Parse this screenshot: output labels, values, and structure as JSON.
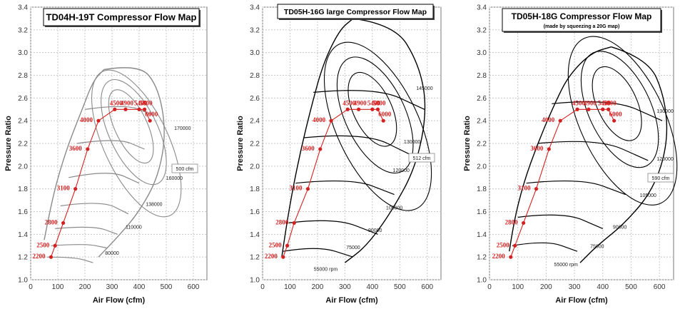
{
  "chart_data": [
    {
      "type": "line",
      "title": "TD04H-19T Compressor Flow Map",
      "subtitle": "",
      "xlabel": "Air Flow (cfm)",
      "ylabel": "Pressure Ratio",
      "xlim": [
        0,
        650
      ],
      "ylim": [
        1.0,
        3.4
      ],
      "xticks": [
        0,
        100,
        200,
        300,
        400,
        500,
        600
      ],
      "yticks": [
        1.0,
        1.2,
        1.4,
        1.6,
        1.8,
        2.0,
        2.2,
        2.4,
        2.6,
        2.8,
        3.0,
        3.2,
        3.4
      ],
      "grid": true,
      "map_color": "#8a8a8a",
      "series": [
        {
          "values": [
            [
              75,
              1.2
            ],
            [
              90,
              1.3
            ],
            [
              120,
              1.5
            ],
            [
              165,
              1.8
            ],
            [
              210,
              2.15
            ],
            [
              250,
              2.4
            ],
            [
              310,
              2.5
            ],
            [
              350,
              2.5
            ],
            [
              400,
              2.5
            ],
            [
              420,
              2.5
            ],
            [
              440,
              2.4
            ]
          ],
          "point_labels": [
            "2200",
            "2500",
            "2800",
            "3100",
            "3600",
            "4000",
            "4500",
            "4900",
            "5400",
            "5800",
            "6000"
          ]
        }
      ],
      "surge_line": [
        [
          50,
          1.35
        ],
        [
          70,
          1.6
        ],
        [
          100,
          1.9
        ],
        [
          140,
          2.2
        ],
        [
          190,
          2.5
        ],
        [
          230,
          2.75
        ],
        [
          270,
          2.85
        ]
      ],
      "speed_lines": [
        [
          [
            60,
            1.2
          ],
          [
            160,
            1.2
          ],
          [
            230,
            1.15
          ]
        ],
        [
          [
            75,
            1.3
          ],
          [
            200,
            1.32
          ],
          [
            280,
            1.28
          ]
        ],
        [
          [
            90,
            1.45
          ],
          [
            230,
            1.48
          ],
          [
            320,
            1.4
          ]
        ],
        [
          [
            110,
            1.65
          ],
          [
            260,
            1.7
          ],
          [
            360,
            1.58
          ]
        ],
        [
          [
            140,
            1.9
          ],
          [
            290,
            1.97
          ],
          [
            400,
            1.85
          ]
        ],
        [
          [
            170,
            2.2
          ],
          [
            320,
            2.25
          ],
          [
            420,
            2.15
          ]
        ],
        [
          [
            200,
            2.5
          ],
          [
            350,
            2.55
          ],
          [
            450,
            2.45
          ]
        ]
      ],
      "choke_line": [
        [
          270,
          2.85
        ],
        [
          400,
          2.9
        ],
        [
          470,
          2.7
        ],
        [
          500,
          2.3
        ],
        [
          470,
          1.9
        ],
        [
          400,
          1.6
        ],
        [
          330,
          1.4
        ],
        [
          250,
          1.2
        ]
      ],
      "efficiency_islands": [
        {
          "cx": 370,
          "cy": 2.35,
          "rx": 60,
          "ry": 0.35
        },
        {
          "cx": 380,
          "cy": 2.3,
          "rx": 90,
          "ry": 0.5
        },
        {
          "cx": 390,
          "cy": 2.2,
          "rx": 120,
          "ry": 0.7
        }
      ],
      "speed_labels": [
        {
          "text": "170000",
          "x": 560,
          "y": 2.32
        },
        {
          "text": "160000",
          "x": 530,
          "y": 1.88
        },
        {
          "text": "138000",
          "x": 455,
          "y": 1.65
        },
        {
          "text": "110000",
          "x": 380,
          "y": 1.45
        },
        {
          "text": "80000",
          "x": 300,
          "y": 1.22
        }
      ],
      "callout": "500 cfm"
    },
    {
      "type": "line",
      "title": "TD05H-16G large Compressor Flow Map",
      "subtitle": "",
      "xlabel": "Air Flow (cfm)",
      "ylabel": "Pressure Ratio",
      "xlim": [
        0,
        650
      ],
      "ylim": [
        1.0,
        3.4
      ],
      "xticks": [
        0,
        100,
        200,
        300,
        400,
        500,
        600
      ],
      "yticks": [
        1.0,
        1.2,
        1.4,
        1.6,
        1.8,
        2.0,
        2.2,
        2.4,
        2.6,
        2.8,
        3.0,
        3.2,
        3.4
      ],
      "grid": true,
      "map_color": "#000000",
      "series": [
        {
          "values": [
            [
              75,
              1.2
            ],
            [
              90,
              1.3
            ],
            [
              115,
              1.5
            ],
            [
              165,
              1.8
            ],
            [
              210,
              2.15
            ],
            [
              250,
              2.4
            ],
            [
              310,
              2.5
            ],
            [
              350,
              2.5
            ],
            [
              400,
              2.5
            ],
            [
              420,
              2.5
            ],
            [
              440,
              2.4
            ]
          ],
          "point_labels": [
            "2200",
            "2500",
            "2800",
            "3100",
            "3600",
            "4000",
            "4500",
            "4900",
            "5400",
            "5800",
            "6000"
          ]
        }
      ],
      "surge_line": [
        [
          70,
          1.2
        ],
        [
          85,
          1.45
        ],
        [
          110,
          1.8
        ],
        [
          140,
          2.15
        ],
        [
          175,
          2.5
        ],
        [
          220,
          2.9
        ],
        [
          280,
          3.2
        ],
        [
          330,
          3.3
        ]
      ],
      "speed_lines": [
        [
          [
            75,
            1.25
          ],
          [
            200,
            1.3
          ],
          [
            330,
            1.2
          ]
        ],
        [
          [
            95,
            1.5
          ],
          [
            260,
            1.55
          ],
          [
            420,
            1.4
          ]
        ],
        [
          [
            120,
            1.85
          ],
          [
            320,
            1.9
          ],
          [
            480,
            1.75
          ]
        ],
        [
          [
            150,
            2.25
          ],
          [
            370,
            2.3
          ],
          [
            540,
            2.1
          ]
        ],
        [
          [
            185,
            2.65
          ],
          [
            410,
            2.7
          ],
          [
            590,
            2.5
          ]
        ]
      ],
      "choke_line": [
        [
          330,
          3.3
        ],
        [
          480,
          3.25
        ],
        [
          570,
          2.9
        ],
        [
          600,
          2.5
        ],
        [
          560,
          2.0
        ],
        [
          470,
          1.6
        ],
        [
          380,
          1.3
        ],
        [
          300,
          1.15
        ]
      ],
      "efficiency_islands": [
        {
          "cx": 400,
          "cy": 2.5,
          "rx": 70,
          "ry": 0.35
        },
        {
          "cx": 410,
          "cy": 2.45,
          "rx": 110,
          "ry": 0.55
        },
        {
          "cx": 420,
          "cy": 2.35,
          "rx": 150,
          "ry": 0.8
        }
      ],
      "speed_labels": [
        {
          "text": "145000",
          "x": 590,
          "y": 2.67
        },
        {
          "text": "130000",
          "x": 545,
          "y": 2.2
        },
        {
          "text": "120000",
          "x": 505,
          "y": 1.95
        },
        {
          "text": "105000",
          "x": 480,
          "y": 1.62
        },
        {
          "text": "90000",
          "x": 410,
          "y": 1.42
        },
        {
          "text": "75000",
          "x": 330,
          "y": 1.27
        },
        {
          "text": "55000 rpm",
          "x": 230,
          "y": 1.08
        }
      ],
      "callout": "512 cfm"
    },
    {
      "type": "line",
      "title": "TD05H-18G Compressor Flow Map",
      "subtitle": "(made by squeezing a 20G map)",
      "xlabel": "Air Flow (cfm)",
      "ylabel": "Pressure Ratio",
      "xlim": [
        0,
        650
      ],
      "ylim": [
        1.0,
        3.4
      ],
      "xticks": [
        0,
        100,
        200,
        300,
        400,
        500,
        600
      ],
      "yticks": [
        1.0,
        1.2,
        1.4,
        1.6,
        1.8,
        2.0,
        2.2,
        2.4,
        2.6,
        2.8,
        3.0,
        3.2,
        3.4
      ],
      "grid": true,
      "map_color": "#000000",
      "series": [
        {
          "values": [
            [
              75,
              1.2
            ],
            [
              90,
              1.3
            ],
            [
              120,
              1.5
            ],
            [
              165,
              1.8
            ],
            [
              210,
              2.15
            ],
            [
              250,
              2.4
            ],
            [
              310,
              2.5
            ],
            [
              350,
              2.5
            ],
            [
              400,
              2.5
            ],
            [
              420,
              2.5
            ],
            [
              440,
              2.4
            ]
          ],
          "point_labels": [
            "2200",
            "2500",
            "2800",
            "3100",
            "3600",
            "4000",
            "4500",
            "4900",
            "5400",
            "5800",
            "6000"
          ]
        }
      ],
      "surge_line": [
        [
          70,
          1.25
        ],
        [
          85,
          1.5
        ],
        [
          120,
          1.85
        ],
        [
          170,
          2.2
        ],
        [
          230,
          2.55
        ],
        [
          280,
          2.8
        ],
        [
          360,
          3.0
        ],
        [
          430,
          3.05
        ]
      ],
      "speed_lines": [
        [
          [
            80,
            1.3
          ],
          [
            200,
            1.35
          ],
          [
            310,
            1.25
          ]
        ],
        [
          [
            100,
            1.55
          ],
          [
            260,
            1.6
          ],
          [
            400,
            1.45
          ]
        ],
        [
          [
            130,
            1.85
          ],
          [
            320,
            1.9
          ],
          [
            480,
            1.75
          ]
        ],
        [
          [
            170,
            2.2
          ],
          [
            380,
            2.25
          ],
          [
            560,
            2.05
          ]
        ],
        [
          [
            220,
            2.55
          ],
          [
            430,
            2.6
          ],
          [
            610,
            2.4
          ]
        ]
      ],
      "choke_line": [
        [
          430,
          3.05
        ],
        [
          560,
          2.95
        ],
        [
          620,
          2.6
        ],
        [
          630,
          2.2
        ],
        [
          580,
          1.8
        ],
        [
          480,
          1.5
        ],
        [
          380,
          1.3
        ],
        [
          320,
          1.15
        ]
      ],
      "efficiency_islands": [
        {
          "cx": 450,
          "cy": 2.55,
          "rx": 70,
          "ry": 0.35
        },
        {
          "cx": 460,
          "cy": 2.5,
          "rx": 110,
          "ry": 0.55
        },
        {
          "cx": 470,
          "cy": 2.4,
          "rx": 150,
          "ry": 0.8
        }
      ],
      "speed_labels": [
        {
          "text": "130000",
          "x": 620,
          "y": 2.47
        },
        {
          "text": "120000",
          "x": 620,
          "y": 2.05
        },
        {
          "text": "105000",
          "x": 560,
          "y": 1.73
        },
        {
          "text": "90000",
          "x": 460,
          "y": 1.45
        },
        {
          "text": "75000",
          "x": 380,
          "y": 1.28
        },
        {
          "text": "55000 rpm",
          "x": 270,
          "y": 1.12
        }
      ],
      "callout": "590 cfm"
    }
  ]
}
